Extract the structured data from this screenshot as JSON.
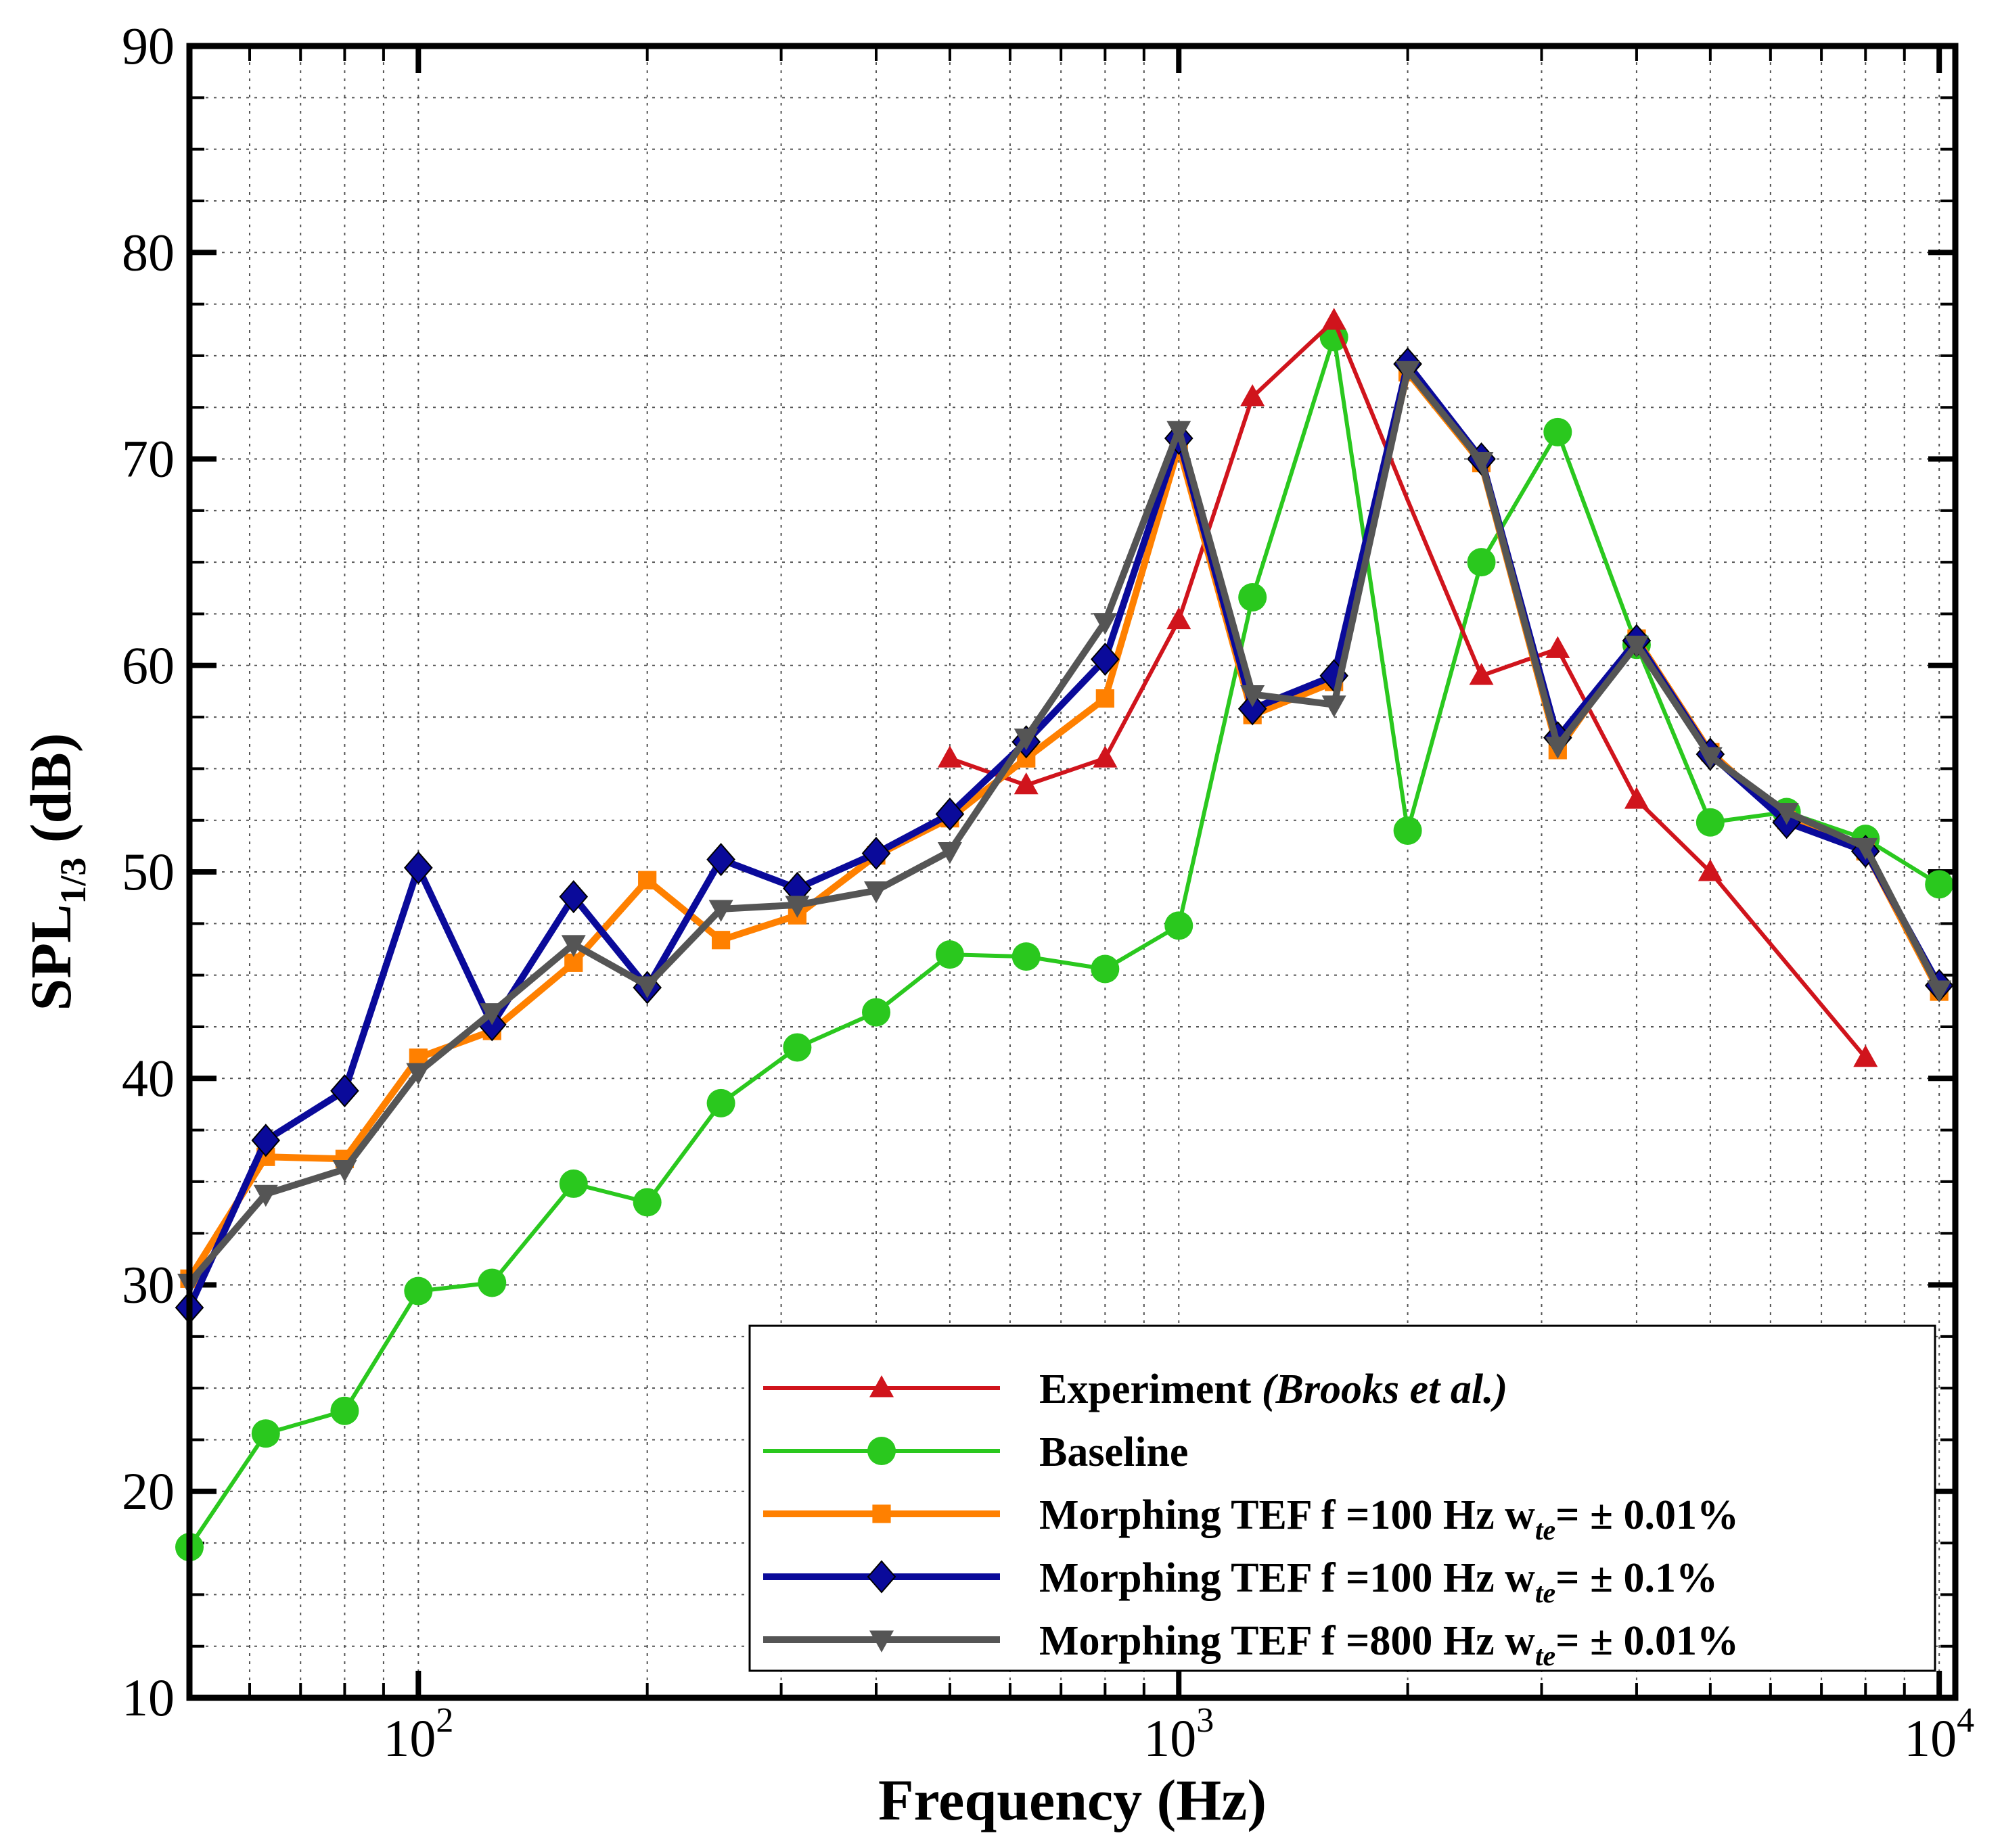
{
  "chart_data": {
    "type": "line",
    "xscale": "log",
    "xlim": [
      50,
      10500
    ],
    "ylim": [
      10,
      90
    ],
    "xlabel": "Frequency (Hz)",
    "ylabel": {
      "main": "SPL",
      "sub": "1/3",
      "unit": " (dB)"
    },
    "y_ticks": [
      10,
      20,
      30,
      40,
      50,
      60,
      70,
      80,
      90
    ],
    "x_ticks": [
      {
        "value": 100,
        "base": "10",
        "exp": "2"
      },
      {
        "value": 1000,
        "base": "10",
        "exp": "3"
      },
      {
        "value": 10000,
        "base": "10",
        "exp": "4"
      }
    ],
    "grid": true,
    "legend_position": "bottom-right",
    "series": [
      {
        "name": "Experiment",
        "name_italic": " (Brooks et al.)",
        "color": "#d0141c",
        "marker": "triangle-up",
        "x": [
          500,
          630,
          800,
          1000,
          1250,
          1600,
          2000,
          2500,
          3150,
          4000,
          5000,
          8000
        ],
        "y": [
          55.5,
          54.2,
          55.5,
          62.2,
          73.0,
          76.7,
          68.0,
          59.5,
          60.8,
          53.5,
          50.0,
          41.0
        ],
        "marker_skip": [
          6
        ]
      },
      {
        "name": "Baseline",
        "color": "#2ac81e",
        "marker": "circle",
        "x": [
          50,
          63,
          80,
          100,
          125,
          160,
          200,
          250,
          315,
          400,
          500,
          630,
          800,
          1000,
          1250,
          1600,
          2000,
          2500,
          3150,
          4000,
          5000,
          6300,
          8000,
          10000
        ],
        "y": [
          17.3,
          22.8,
          23.9,
          29.7,
          30.1,
          34.9,
          34.0,
          38.8,
          41.5,
          43.2,
          46.0,
          45.9,
          45.3,
          47.4,
          63.3,
          75.9,
          52.0,
          65.0,
          71.3,
          61.0,
          52.4,
          52.9,
          51.6,
          49.4
        ]
      },
      {
        "name": "Morphing TEF  f =100 Hz  w",
        "name_sub": "te",
        "name_tail": "= ± 0.01%",
        "color": "#ff8000",
        "marker": "square",
        "x": [
          50,
          63,
          80,
          100,
          125,
          160,
          200,
          250,
          315,
          400,
          500,
          630,
          800,
          1000,
          1250,
          1600,
          2000,
          2500,
          3150,
          4000,
          5000,
          6300,
          8000,
          10000
        ],
        "y": [
          30.3,
          36.2,
          36.1,
          41.0,
          42.3,
          45.6,
          49.6,
          46.7,
          47.9,
          50.8,
          52.6,
          55.5,
          58.4,
          70.6,
          57.6,
          59.2,
          74.2,
          69.8,
          55.9,
          61.3,
          55.8,
          52.5,
          51.0,
          44.2
        ]
      },
      {
        "name": "Morphing TEF  f =100 Hz  w",
        "name_sub": "te",
        "name_tail": "= ± 0.1%",
        "color": "#0a0a9a",
        "marker": "diamond",
        "x": [
          50,
          63,
          80,
          100,
          125,
          160,
          200,
          250,
          315,
          400,
          500,
          630,
          800,
          1000,
          1250,
          1600,
          2000,
          2500,
          3150,
          4000,
          5000,
          6300,
          8000,
          10000
        ],
        "y": [
          28.9,
          37.0,
          39.4,
          50.2,
          42.6,
          48.8,
          44.4,
          50.6,
          49.2,
          50.9,
          52.8,
          56.3,
          60.3,
          71.0,
          57.9,
          59.5,
          74.6,
          70.0,
          56.5,
          61.2,
          55.7,
          52.4,
          51.0,
          44.5
        ]
      },
      {
        "name": "Morphing TEF  f =800 Hz  w",
        "name_sub": "te",
        "name_tail": "= ± 0.01%",
        "color": "#555555",
        "marker": "triangle-down",
        "x": [
          50,
          63,
          80,
          100,
          125,
          160,
          200,
          250,
          315,
          400,
          500,
          630,
          800,
          1000,
          1250,
          1600,
          2000,
          2500,
          3150,
          4000,
          5000,
          6300,
          8000,
          10000
        ],
        "y": [
          30.1,
          34.4,
          35.6,
          40.3,
          43.2,
          46.5,
          44.5,
          48.2,
          48.4,
          49.1,
          51.0,
          56.5,
          62.1,
          71.4,
          58.6,
          58.1,
          74.3,
          69.9,
          56.1,
          61.0,
          55.6,
          52.9,
          51.2,
          44.3
        ]
      }
    ]
  }
}
